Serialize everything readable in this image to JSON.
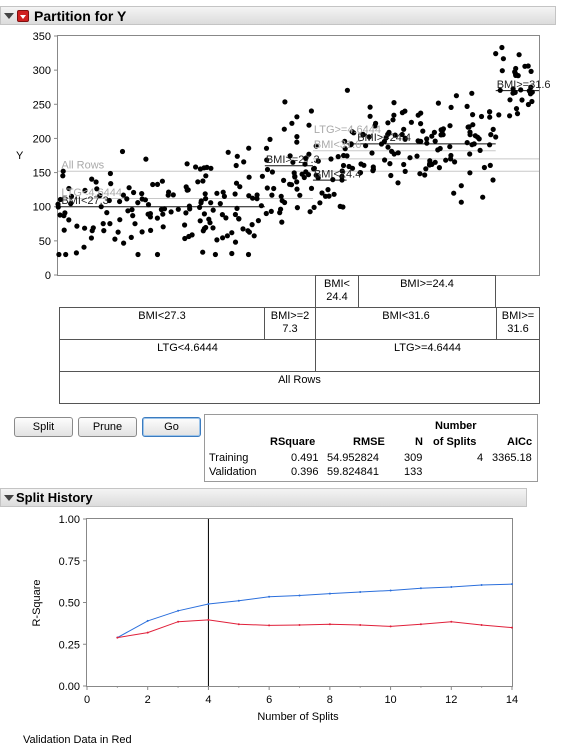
{
  "partition_outline": {
    "title": "Partition for Y"
  },
  "partition_plot": {
    "y_axis_title": "Y",
    "y_ticks": [
      0,
      50,
      100,
      150,
      200,
      250,
      300,
      350
    ],
    "ylim": [
      0,
      350
    ],
    "split_labels": [
      {
        "text": "All Rows",
        "color": "#aaaaaa"
      },
      {
        "text": "LTG<4.6444",
        "color": "#aaaaaa"
      },
      {
        "text": "BMI<27.3",
        "color": "#222222"
      },
      {
        "text": "BMI>=27.3",
        "color": "#222222"
      },
      {
        "text": "BMI<24.4",
        "color": "#222222"
      },
      {
        "text": "LTG>=4.6444",
        "color": "#aaaaaa"
      },
      {
        "text": "BMI>=24.4",
        "color": "#222222"
      },
      {
        "text": "BMI<31.6",
        "color": "#aaaaaa"
      },
      {
        "text": "BMI>=31.6",
        "color": "#222222"
      }
    ],
    "leaf_means": {
      "all_rows": 152,
      "ltg_low": 112,
      "bmi_low_a": 100,
      "bmi_high_a": 160,
      "bmi_low_b": 139,
      "bmi_high_b": 192,
      "bmi_high_c": 270
    }
  },
  "tree": {
    "row1": [
      "BMI<24.4",
      "BMI>=24.4"
    ],
    "row2": [
      "BMI<27.3",
      "BMI>=27.3",
      "BMI<31.6",
      "BMI>=31.6"
    ],
    "row3": [
      "LTG<4.6444",
      "LTG>=4.6444"
    ],
    "row4": "All Rows"
  },
  "buttons": {
    "split": "Split",
    "prune": "Prune",
    "go": "Go"
  },
  "stats": {
    "headers": {
      "rsquare": "RSquare",
      "rmse": "RMSE",
      "n": "N",
      "splits_line1": "Number",
      "splits_line2": "of Splits",
      "aicc": "AICc"
    },
    "rows": [
      {
        "label": "Training",
        "rsquare": "0.491",
        "rmse": "54.952824",
        "n": "309",
        "splits": "4",
        "aicc": "3365.18"
      },
      {
        "label": "Validation",
        "rsquare": "0.396",
        "rmse": "59.824841",
        "n": "133",
        "splits": "",
        "aicc": ""
      }
    ]
  },
  "split_history": {
    "title": "Split History"
  },
  "chart_data": {
    "type": "line",
    "title": "",
    "xlabel": "Number of Splits",
    "ylabel": "R-Square",
    "xlim": [
      0,
      14
    ],
    "ylim": [
      0,
      1
    ],
    "x_ticks": [
      0,
      2,
      4,
      6,
      8,
      10,
      12,
      14
    ],
    "y_ticks": [
      "0.00",
      "0.25",
      "0.50",
      "0.75",
      "1.00"
    ],
    "grid": false,
    "current_split_marker": 4,
    "series": [
      {
        "color": "#2b6fdc",
        "x": [
          1,
          2,
          3,
          4,
          5,
          6,
          7,
          8,
          9,
          10,
          11,
          12,
          13,
          14
        ],
        "values": [
          0.29,
          0.39,
          0.45,
          0.491,
          0.51,
          0.535,
          0.542,
          0.553,
          0.563,
          0.572,
          0.585,
          0.593,
          0.605,
          0.61
        ]
      },
      {
        "color": "#e0203a",
        "x": [
          1,
          2,
          3,
          4,
          5,
          6,
          7,
          8,
          9,
          10,
          11,
          12,
          13,
          14
        ],
        "values": [
          0.29,
          0.32,
          0.385,
          0.396,
          0.37,
          0.363,
          0.365,
          0.37,
          0.365,
          0.357,
          0.37,
          0.385,
          0.365,
          0.35
        ]
      }
    ]
  },
  "footer_note": "Validation Data in Red"
}
